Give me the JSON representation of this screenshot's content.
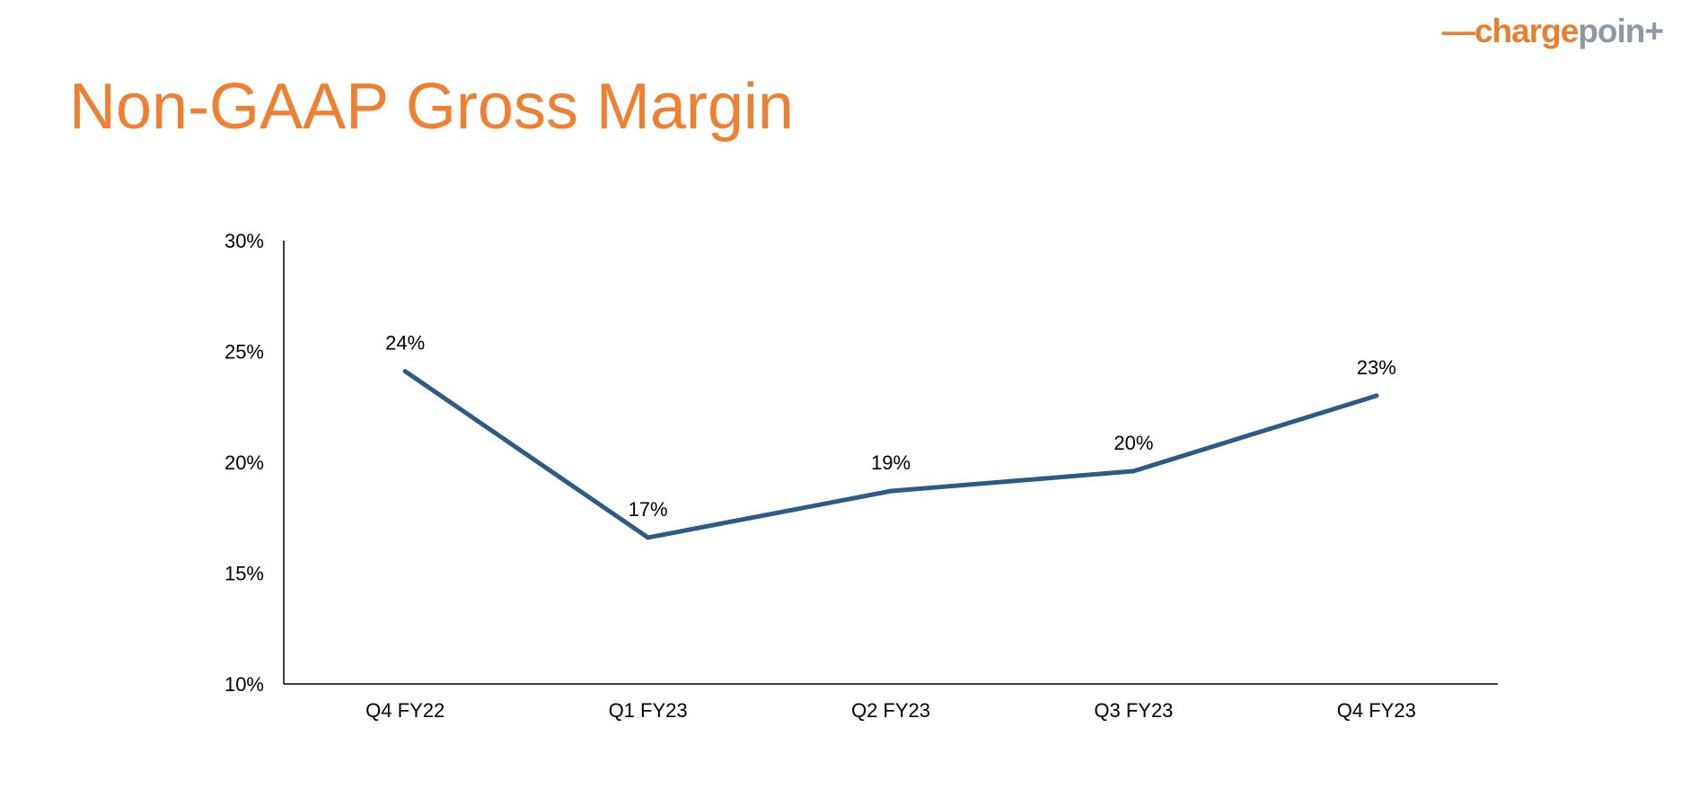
{
  "header": {
    "title": "Non-GAAP Gross Margin",
    "logo": {
      "text_dash": "—",
      "text_charge": "charge",
      "text_point": "poin",
      "text_plus": "+",
      "colors": {
        "orange": "#e87f2c",
        "gray": "#8c98a3"
      }
    }
  },
  "colors": {
    "title": "#ef7f31",
    "line": "#2b5b86",
    "axis": "#000000"
  },
  "chart_data": {
    "type": "line",
    "title": "",
    "xlabel": "",
    "ylabel": "",
    "categories": [
      "Q4 FY22",
      "Q1 FY23",
      "Q2 FY23",
      "Q3 FY23",
      "Q4 FY23"
    ],
    "values": [
      24.1,
      16.6,
      18.7,
      19.6,
      23.0
    ],
    "data_labels": [
      "24%",
      "17%",
      "19%",
      "20%",
      "23%"
    ],
    "ylim": [
      10,
      30
    ],
    "yticks": [
      10,
      15,
      20,
      25,
      30
    ],
    "ytick_labels": [
      "10%",
      "15%",
      "20%",
      "25%",
      "30%"
    ],
    "grid": false,
    "legend": "none"
  }
}
